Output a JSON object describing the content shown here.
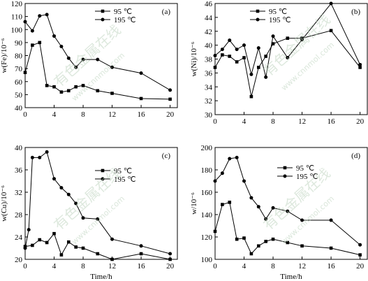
{
  "colors": {
    "line": "#000000",
    "axis": "#000000",
    "watermark": "#bcd3bd"
  },
  "watermark": {
    "text": "有色金属在线",
    "url": "www.cnnmol.com"
  },
  "chart_data": [
    {
      "type": "line",
      "panel": "(a)",
      "xlabel": "",
      "ylabel": "w(Fe)/10⁻⁶",
      "xlim": [
        0,
        21
      ],
      "ylim": [
        40,
        120
      ],
      "xticks": [
        0,
        4,
        8,
        12,
        16,
        20
      ],
      "yticks": [
        40,
        50,
        60,
        70,
        80,
        90,
        100,
        110,
        120
      ],
      "legend_position": "top-right",
      "series": [
        {
          "name": "95 ℃",
          "marker": "square",
          "x": [
            0,
            1,
            2,
            3,
            4,
            5,
            6,
            7,
            8,
            10,
            12,
            16,
            20
          ],
          "y": [
            67,
            88,
            90,
            57,
            56,
            52,
            53,
            56,
            57,
            53,
            51,
            47,
            46.5
          ]
        },
        {
          "name": "195 ℃",
          "marker": "circle",
          "x": [
            0,
            1,
            2,
            3,
            4,
            5,
            6,
            7,
            8,
            10,
            12,
            16,
            20
          ],
          "y": [
            106,
            99,
            110.5,
            111.5,
            95,
            87,
            78,
            71,
            77,
            77,
            71,
            66.5,
            53.5
          ]
        }
      ]
    },
    {
      "type": "line",
      "panel": "(b)",
      "xlabel": "",
      "ylabel": "w(Ni)/10⁻⁶",
      "xlim": [
        0,
        21
      ],
      "ylim": [
        30,
        46
      ],
      "xticks": [
        0,
        4,
        8,
        12,
        16,
        20
      ],
      "yticks": [
        30,
        32,
        34,
        36,
        38,
        40,
        42,
        44,
        46
      ],
      "legend_position": "top-left",
      "series": [
        {
          "name": "95 ℃",
          "marker": "square",
          "x": [
            0,
            1,
            2,
            3,
            4,
            5,
            6,
            7,
            8,
            10,
            12,
            16,
            20
          ],
          "y": [
            36.8,
            38.6,
            38.4,
            37.6,
            38.2,
            32.6,
            36.8,
            38.4,
            40.2,
            41,
            41,
            42.1,
            36.8
          ]
        },
        {
          "name": "195 ℃",
          "marker": "circle",
          "x": [
            0,
            1,
            2,
            3,
            4,
            5,
            6,
            7,
            8,
            10,
            12,
            16,
            20
          ],
          "y": [
            38.5,
            39.4,
            40.7,
            39.4,
            40,
            35.8,
            39.6,
            35.4,
            41.3,
            38.2,
            40.8,
            46,
            37.2
          ]
        }
      ]
    },
    {
      "type": "line",
      "panel": "(c)",
      "xlabel": "Time/h",
      "ylabel": "w(Cu)/10⁻⁶",
      "xlim": [
        0,
        21
      ],
      "ylim": [
        20,
        40
      ],
      "xticks": [
        0,
        4,
        8,
        12,
        16,
        20
      ],
      "yticks": [
        20,
        24,
        28,
        32,
        36,
        40
      ],
      "legend_position": "top-right",
      "series": [
        {
          "name": "95 ℃",
          "marker": "square",
          "x": [
            0,
            1,
            2,
            3,
            4,
            5,
            6,
            7,
            8,
            10,
            12,
            16,
            20
          ],
          "y": [
            22.3,
            22.5,
            23.5,
            23,
            24.6,
            20.8,
            23.1,
            22.2,
            22,
            21,
            20,
            21,
            20
          ]
        },
        {
          "name": "195 ℃",
          "marker": "circle",
          "x": [
            0,
            0.5,
            1,
            2,
            3,
            4,
            5,
            6,
            7,
            8,
            10,
            12,
            16,
            20
          ],
          "y": [
            22,
            25.3,
            38.2,
            38.2,
            39.2,
            34.4,
            32.8,
            31.6,
            30,
            27.4,
            27.2,
            23.6,
            22.4,
            21
          ]
        }
      ]
    },
    {
      "type": "line",
      "panel": "(d)",
      "xlabel": "Time/h",
      "ylabel": "w/10⁻⁶",
      "xlim": [
        0,
        21
      ],
      "ylim": [
        100,
        200
      ],
      "xticks": [
        0,
        4,
        8,
        12,
        16,
        20
      ],
      "yticks": [
        100,
        120,
        140,
        160,
        180,
        200
      ],
      "legend_position": "top-right",
      "series": [
        {
          "name": "95 ℃",
          "marker": "square",
          "x": [
            0,
            1,
            2,
            3,
            4,
            5,
            6,
            7,
            8,
            10,
            12,
            16,
            20
          ],
          "y": [
            125,
            149,
            151,
            118,
            119,
            105,
            112,
            116,
            118,
            115,
            112,
            110,
            104
          ]
        },
        {
          "name": "195 ℃",
          "marker": "circle",
          "x": [
            0,
            1,
            2,
            3,
            4,
            5,
            6,
            7,
            8,
            10,
            12,
            16,
            20
          ],
          "y": [
            170,
            177,
            190,
            191,
            170,
            155,
            147,
            136,
            146,
            143,
            135,
            135,
            113
          ]
        }
      ]
    }
  ]
}
